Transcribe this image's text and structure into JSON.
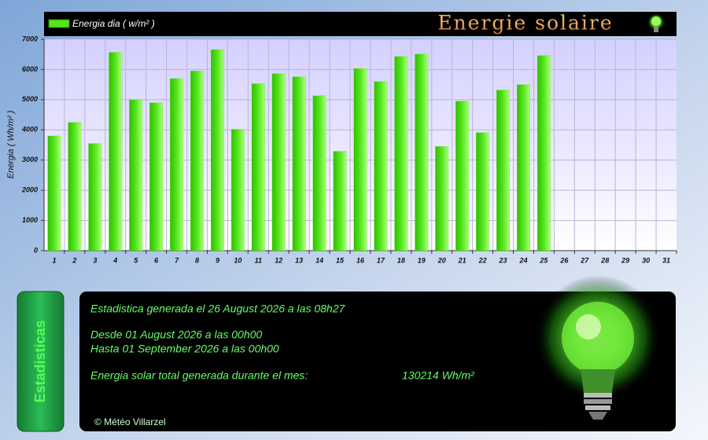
{
  "chart_data": {
    "type": "bar",
    "title": "Energie solaire",
    "ylabel": "Energia ( Wh/m² )",
    "categories": [
      "1",
      "2",
      "3",
      "4",
      "5",
      "6",
      "7",
      "8",
      "9",
      "10",
      "11",
      "12",
      "13",
      "14",
      "15",
      "16",
      "17",
      "18",
      "19",
      "20",
      "21",
      "22",
      "23",
      "24",
      "25",
      "26",
      "27",
      "28",
      "29",
      "30",
      "31"
    ],
    "series": [
      {
        "name": "Energia dia ( w/m² )",
        "color": "#55e61e",
        "values": [
          3800,
          4250,
          3550,
          6570,
          5000,
          4900,
          5700,
          5950,
          6660,
          4020,
          5530,
          5860,
          5760,
          5130,
          3290,
          6030,
          5600,
          6430,
          6510,
          3450,
          4950,
          3910,
          5320,
          5500,
          6460,
          null,
          null,
          null,
          null,
          null,
          null
        ]
      }
    ],
    "ylim": [
      0,
      7000
    ],
    "yticks": [
      0,
      1000,
      2000,
      3000,
      4000,
      5000,
      6000,
      7000
    ],
    "grid": true,
    "legend": "top-left"
  },
  "stats": {
    "tab": "Estadisticas",
    "generated": "Estadistica generada el 26 August 2026 a las 08h27",
    "from": "Desde 01 August 2026 a las 00h00",
    "to": "Hasta 01 September 2026 a las 00h00",
    "total_label": "Energia solar total generada durante el mes:",
    "total_value": "130214 Wh/m²",
    "footer": "© Météo Villarzel"
  }
}
